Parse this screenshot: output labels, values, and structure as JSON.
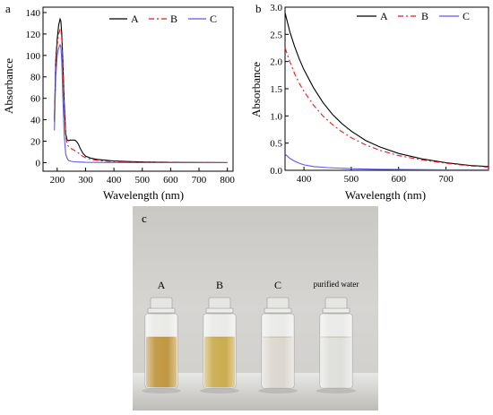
{
  "charts": [
    {
      "panel_label": "a",
      "chart_data": {
        "type": "line",
        "xlabel": "Wavelength (nm)",
        "ylabel": "Absorbance",
        "xlim": [
          150,
          820
        ],
        "ylim": [
          -8,
          145
        ],
        "xticks": [
          200,
          300,
          400,
          500,
          600,
          700,
          800
        ],
        "yticks": [
          0,
          20,
          40,
          60,
          80,
          100,
          120,
          140
        ],
        "legend_position": "top-right",
        "series": [
          {
            "name": "A",
            "color": "#000000",
            "dash": "solid",
            "x": [
              190,
              195,
              200,
              205,
              210,
              213,
              216,
              220,
              225,
              230,
              235,
              240,
              245,
              250,
              255,
              260,
              265,
              270,
              275,
              280,
              290,
              300,
              320,
              340,
              360,
              380,
              400,
              450,
              500,
              600,
              700,
              800
            ],
            "y": [
              40,
              95,
              115,
              128,
              134,
              132,
              120,
              95,
              55,
              27,
              21,
              20.5,
              21,
              21,
              21,
              21,
              20.5,
              19,
              17,
              14,
              9,
              6,
              4,
              3,
              2.5,
              2,
              1.6,
              1,
              0.6,
              0.3,
              0.1,
              0
            ]
          },
          {
            "name": "B",
            "color": "#e31a1c",
            "dash": "6,3,2,3",
            "x": [
              190,
              195,
              200,
              205,
              210,
              213,
              216,
              220,
              225,
              230,
              235,
              240,
              245,
              250,
              260,
              270,
              280,
              290,
              300,
              320,
              340,
              360,
              400,
              450,
              500,
              600,
              700,
              800
            ],
            "y": [
              38,
              90,
              110,
              120,
              124,
              123,
              115,
              90,
              50,
              25,
              17,
              15,
              14,
              13,
              11.5,
              10,
              8,
              6,
              4.5,
              3,
              2.2,
              1.6,
              1,
              0.6,
              0.4,
              0.2,
              0.1,
              0
            ]
          },
          {
            "name": "C",
            "color": "#5a5ae6",
            "dash": "solid",
            "x": [
              190,
              195,
              200,
              205,
              210,
              213,
              216,
              220,
              225,
              230,
              235,
              240,
              250,
              260,
              280,
              300,
              400,
              500,
              600,
              700,
              800
            ],
            "y": [
              30,
              80,
              100,
              107,
              110,
              108,
              95,
              60,
              25,
              8,
              4,
              2,
              1.2,
              0.8,
              0.5,
              0.3,
              0.1,
              0,
              0,
              0,
              0
            ]
          }
        ]
      }
    },
    {
      "panel_label": "b",
      "chart_data": {
        "type": "line",
        "xlabel": "Wavelength (nm)",
        "ylabel": "Absorbance",
        "xlim": [
          360,
          790
        ],
        "ylim": [
          0,
          3.0
        ],
        "xticks": [
          400,
          500,
          600,
          700
        ],
        "yticks": [
          0.0,
          0.5,
          1.0,
          1.5,
          2.0,
          2.5,
          3.0
        ],
        "legend_position": "top-right",
        "series": [
          {
            "name": "A",
            "color": "#000000",
            "dash": "solid",
            "x": [
              360,
              370,
              380,
              390,
              400,
              420,
              440,
              460,
              480,
              500,
              530,
              560,
              600,
              650,
              700,
              750,
              790
            ],
            "y": [
              2.9,
              2.55,
              2.28,
              2.05,
              1.85,
              1.52,
              1.25,
              1.03,
              0.86,
              0.72,
              0.55,
              0.43,
              0.31,
              0.21,
              0.14,
              0.09,
              0.07
            ]
          },
          {
            "name": "B",
            "color": "#e31a1c",
            "dash": "6,3,2,3",
            "x": [
              360,
              370,
              380,
              390,
              400,
              420,
              440,
              460,
              480,
              500,
              530,
              560,
              600,
              650,
              700,
              750,
              790
            ],
            "y": [
              2.25,
              2.0,
              1.78,
              1.6,
              1.45,
              1.2,
              1.0,
              0.84,
              0.71,
              0.6,
              0.47,
              0.37,
              0.27,
              0.19,
              0.13,
              0.08,
              0.06
            ]
          },
          {
            "name": "C",
            "color": "#5a5ae6",
            "dash": "solid",
            "x": [
              360,
              370,
              380,
              390,
              400,
              420,
              450,
              500,
              550,
              600,
              700,
              790
            ],
            "y": [
              0.3,
              0.22,
              0.17,
              0.13,
              0.1,
              0.07,
              0.05,
              0.03,
              0.02,
              0.015,
              0.01,
              0.01
            ]
          }
        ]
      }
    }
  ],
  "photo": {
    "panel_label": "c",
    "vials": [
      {
        "label": "A",
        "liquid_color": "#b88a2a"
      },
      {
        "label": "B",
        "liquid_color": "#c4a23a"
      },
      {
        "label": "C",
        "liquid_color": "#d8d4cc"
      },
      {
        "label": "purified water",
        "liquid_color": "#dcdcd8"
      }
    ]
  }
}
